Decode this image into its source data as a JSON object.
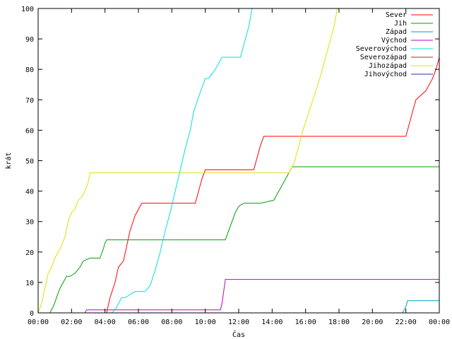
{
  "chart_data": {
    "type": "line",
    "xlabel": "Čas",
    "ylabel": "krát",
    "xlim": [
      0,
      24
    ],
    "ylim": [
      0,
      100
    ],
    "x_ticks": [
      "00:00",
      "02:00",
      "04:00",
      "06:00",
      "08:00",
      "10:00",
      "12:00",
      "14:00",
      "16:00",
      "18:00",
      "20:00",
      "22:00",
      "00:00"
    ],
    "y_ticks": [
      0,
      10,
      20,
      30,
      40,
      50,
      60,
      70,
      80,
      90,
      100
    ],
    "grid": false,
    "legend_position": "top-right",
    "series": [
      {
        "name": "Sever",
        "color": "#ff0000",
        "x": [
          0,
          4.1,
          4.3,
          4.6,
          4.8,
          5.1,
          5.3,
          5.5,
          5.8,
          6.0,
          6.2,
          6.5,
          9.4,
          9.6,
          9.8,
          10.0,
          11.5,
          12.9,
          13.1,
          13.3,
          13.5,
          15.0,
          17.0,
          22.0,
          22.2,
          22.4,
          22.6,
          22.8,
          23.2,
          23.6,
          23.8,
          24.0
        ],
        "y": [
          0,
          0,
          5,
          10,
          15,
          17,
          22,
          27,
          32,
          34,
          36,
          36,
          36,
          40,
          44,
          47,
          47,
          47,
          51,
          55,
          58,
          58,
          58,
          58,
          62,
          66,
          70,
          71,
          73,
          77,
          80,
          84
        ]
      },
      {
        "name": "Jih",
        "color": "#00a000",
        "x": [
          0,
          0.7,
          0.9,
          1.1,
          1.3,
          1.5,
          1.7,
          1.9,
          2.2,
          2.5,
          2.7,
          3.1,
          3.7,
          3.9,
          4.0,
          4.1,
          6.0,
          8.0,
          10.0,
          11.2,
          11.4,
          11.6,
          11.8,
          12.0,
          12.3,
          13.3,
          14.1,
          14.4,
          14.7,
          15.0,
          15.2,
          17.0,
          20.0,
          24.0
        ],
        "y": [
          0,
          0,
          2,
          5,
          8,
          10,
          12,
          12,
          13,
          15,
          17,
          18,
          18,
          21,
          23,
          24,
          24,
          24,
          24,
          24,
          27,
          30,
          33,
          35,
          36,
          36,
          37,
          40,
          43,
          46,
          48,
          48,
          48,
          48
        ]
      },
      {
        "name": "Západ",
        "color": "#00a0c0",
        "x": [
          0,
          21.8,
          21.9,
          22.0,
          22.1,
          24.0
        ],
        "y": [
          0,
          0,
          1,
          2,
          4,
          4
        ]
      },
      {
        "name": "Východ",
        "color": "#c000c0",
        "x": [
          0,
          2.8,
          2.9,
          4.0,
          6.0,
          8.0,
          10.0,
          10.9,
          11.0,
          11.1,
          11.2,
          14.0,
          18.0,
          22.0,
          24.0
        ],
        "y": [
          0,
          0,
          1,
          1,
          1,
          1,
          1,
          1,
          3,
          7,
          11,
          11,
          11,
          11,
          11
        ]
      },
      {
        "name": "Severovýchod",
        "color": "#00e0e0",
        "x": [
          0,
          4.4,
          4.6,
          4.8,
          5.0,
          5.2,
          5.5,
          5.8,
          6.1,
          6.4,
          6.7,
          7.0,
          7.3,
          7.6,
          7.9,
          8.2,
          8.5,
          8.8,
          9.1,
          9.3,
          9.6,
          10.0,
          10.2,
          10.6,
          11.0,
          11.4,
          11.8,
          12.1,
          12.3,
          12.6,
          12.8
        ],
        "y": [
          0,
          0,
          1,
          3,
          5,
          5,
          6,
          7,
          7,
          7,
          9,
          14,
          20,
          27,
          33,
          40,
          47,
          54,
          60,
          66,
          71,
          77,
          77,
          80,
          84,
          84,
          84,
          84,
          88,
          94,
          100
        ]
      },
      {
        "name": "Severozápad",
        "color": "#a03030",
        "x": [],
        "y": []
      },
      {
        "name": "Jihozápad",
        "color": "#e0e000",
        "x": [
          0,
          0.2,
          0.4,
          0.6,
          0.8,
          1.0,
          1.2,
          1.4,
          1.6,
          1.8,
          2.0,
          2.2,
          2.4,
          2.6,
          2.8,
          3.0,
          3.1,
          3.3,
          5.0,
          8.0,
          12.0,
          14.0,
          15.0,
          15.3,
          15.6,
          15.9,
          16.2,
          16.5,
          16.8,
          17.1,
          17.4,
          17.7,
          17.9
        ],
        "y": [
          0,
          3,
          8,
          13,
          15,
          18,
          20,
          22,
          25,
          30,
          33,
          34,
          37,
          38,
          40,
          43,
          46,
          46,
          46,
          46,
          46,
          46,
          46,
          49,
          55,
          61,
          66,
          71,
          76,
          82,
          88,
          94,
          100
        ]
      },
      {
        "name": "Jihovýchod",
        "color": "#3030b0",
        "x": [],
        "y": []
      }
    ]
  }
}
